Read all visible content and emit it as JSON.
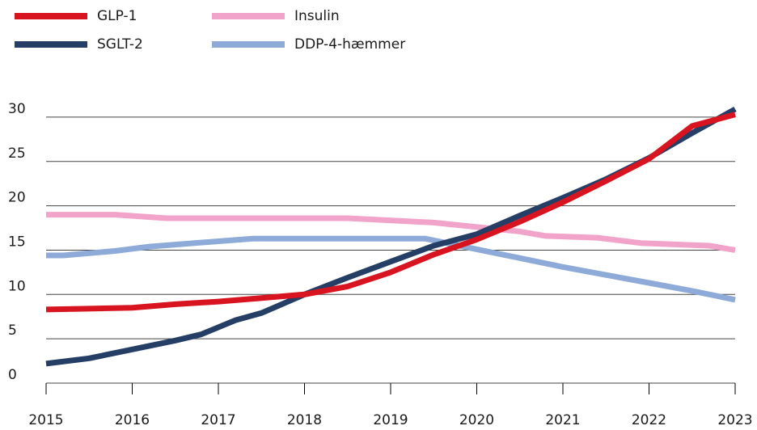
{
  "chart_data": {
    "type": "line",
    "series": [
      {
        "name": "GLP-1",
        "color": "#d7141f",
        "x": [
          2015,
          2015.5,
          2016,
          2016.5,
          2017,
          2017.5,
          2018,
          2018.5,
          2019,
          2019.5,
          2020,
          2020.5,
          2021,
          2021.5,
          2022,
          2022.5,
          2023
        ],
        "values": [
          8.3,
          8.4,
          8.5,
          8.9,
          9.2,
          9.6,
          10.0,
          10.9,
          12.5,
          14.5,
          16.2,
          18.2,
          20.4,
          22.8,
          25.3,
          29.0,
          30.3
        ]
      },
      {
        "name": "SGLT-2",
        "color": "#243e66",
        "x": [
          2015,
          2015.5,
          2016,
          2016.5,
          2016.8,
          2017.2,
          2017.5,
          2018,
          2018.5,
          2019,
          2019.5,
          2020,
          2020.5,
          2021,
          2021.5,
          2022,
          2022.5,
          2023
        ],
        "values": [
          2.2,
          2.8,
          3.8,
          4.8,
          5.5,
          7.1,
          7.9,
          10.0,
          11.9,
          13.7,
          15.5,
          16.8,
          18.9,
          20.9,
          23.0,
          25.4,
          28.2,
          30.9
        ]
      },
      {
        "name": "Insulin",
        "color": "#f2a3c9",
        "x": [
          2015,
          2015.8,
          2016.4,
          2018.5,
          2019.5,
          2020,
          2020.5,
          2020.8,
          2021.4,
          2021.9,
          2022.7,
          2023
        ],
        "values": [
          19.0,
          19.0,
          18.6,
          18.6,
          18.1,
          17.6,
          17.1,
          16.6,
          16.4,
          15.8,
          15.5,
          15.0
        ]
      },
      {
        "name": "DDP-4-hæmmer",
        "color": "#8eaad8",
        "x": [
          2015,
          2015.2,
          2015.8,
          2016.2,
          2017.4,
          2019.4,
          2020,
          2020.5,
          2021,
          2021.5,
          2022,
          2022.5,
          2023
        ],
        "values": [
          14.4,
          14.4,
          14.9,
          15.4,
          16.3,
          16.3,
          15.1,
          14.1,
          13.1,
          12.2,
          11.3,
          10.4,
          9.4
        ]
      }
    ],
    "xlim": [
      2015,
      2023
    ],
    "xticks": [
      2015,
      2016,
      2017,
      2018,
      2019,
      2020,
      2021,
      2022,
      2023
    ],
    "ylim": [
      0,
      30.9
    ],
    "yticks": [
      0,
      5,
      10,
      15,
      20,
      25,
      30
    ],
    "grid": true
  }
}
